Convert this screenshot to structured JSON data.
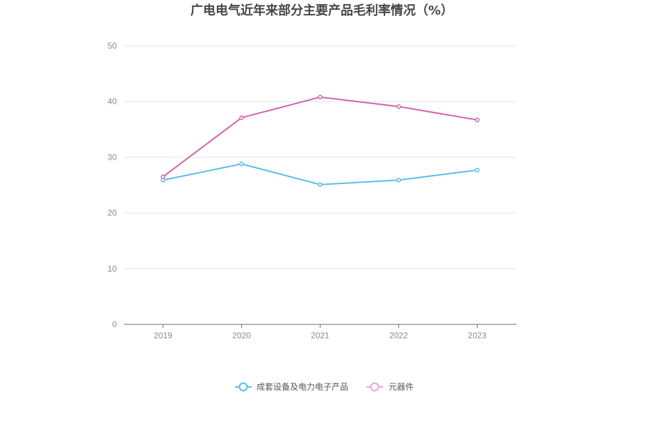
{
  "chart_data": {
    "type": "line",
    "title": "广电电气近年来部分主要产品毛利率情况（%）",
    "categories": [
      "2019",
      "2020",
      "2021",
      "2022",
      "2023"
    ],
    "series": [
      {
        "name": "成套设备及电力电子产品",
        "color": "#5bbce8",
        "values": [
          25.9,
          28.8,
          25.1,
          25.9,
          27.7
        ]
      },
      {
        "name": "元器件",
        "color": "#d264aa",
        "values": [
          26.5,
          37.1,
          40.8,
          39.1,
          36.7
        ]
      }
    ],
    "ylim": [
      0,
      50
    ],
    "yticks": [
      0,
      10,
      20,
      30,
      40,
      50
    ],
    "grid": true,
    "legend_position": "bottom"
  }
}
